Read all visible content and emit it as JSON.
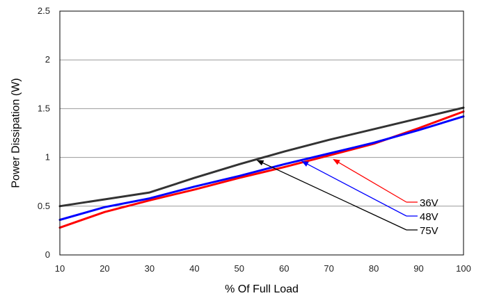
{
  "chart_data": {
    "type": "line",
    "xlabel": "% Of Full Load",
    "ylabel": "Power Dissipation (W)",
    "xlim": [
      10,
      100
    ],
    "ylim": [
      0,
      2.5
    ],
    "x_ticks": [
      "10",
      "20",
      "30",
      "40",
      "50",
      "60",
      "70",
      "80",
      "90",
      "100"
    ],
    "y_ticks": [
      "0",
      "0.5",
      "1",
      "1.5",
      "2",
      "2.5"
    ],
    "grid": "horizontal",
    "series": [
      {
        "name": "36V",
        "color": "#ff0000",
        "x": [
          10,
          20,
          30,
          40,
          50,
          60,
          70,
          80,
          90,
          100
        ],
        "y": [
          0.28,
          0.44,
          0.56,
          0.67,
          0.79,
          0.9,
          1.02,
          1.14,
          1.3,
          1.47
        ]
      },
      {
        "name": "48V",
        "color": "#0000ff",
        "x": [
          10,
          20,
          30,
          40,
          50,
          60,
          70,
          80,
          90,
          100
        ],
        "y": [
          0.36,
          0.49,
          0.58,
          0.7,
          0.81,
          0.93,
          1.04,
          1.15,
          1.28,
          1.42
        ]
      },
      {
        "name": "75V",
        "color": "#333333",
        "x": [
          10,
          20,
          30,
          40,
          50,
          60,
          70,
          80,
          90,
          100
        ],
        "y": [
          0.5,
          0.57,
          0.64,
          0.79,
          0.93,
          1.06,
          1.18,
          1.29,
          1.4,
          1.51
        ]
      }
    ],
    "legend": "right, with arrows pointing to lines",
    "annotations": [
      {
        "label": "36V",
        "color": "#ff0000",
        "points_to_x": 71,
        "points_to_y": 0.98
      },
      {
        "label": "48V",
        "color": "#0000ff",
        "points_to_x": 64,
        "points_to_y": 0.96
      },
      {
        "label": "75V",
        "color": "#000000",
        "points_to_x": 54,
        "points_to_y": 0.97
      }
    ]
  }
}
